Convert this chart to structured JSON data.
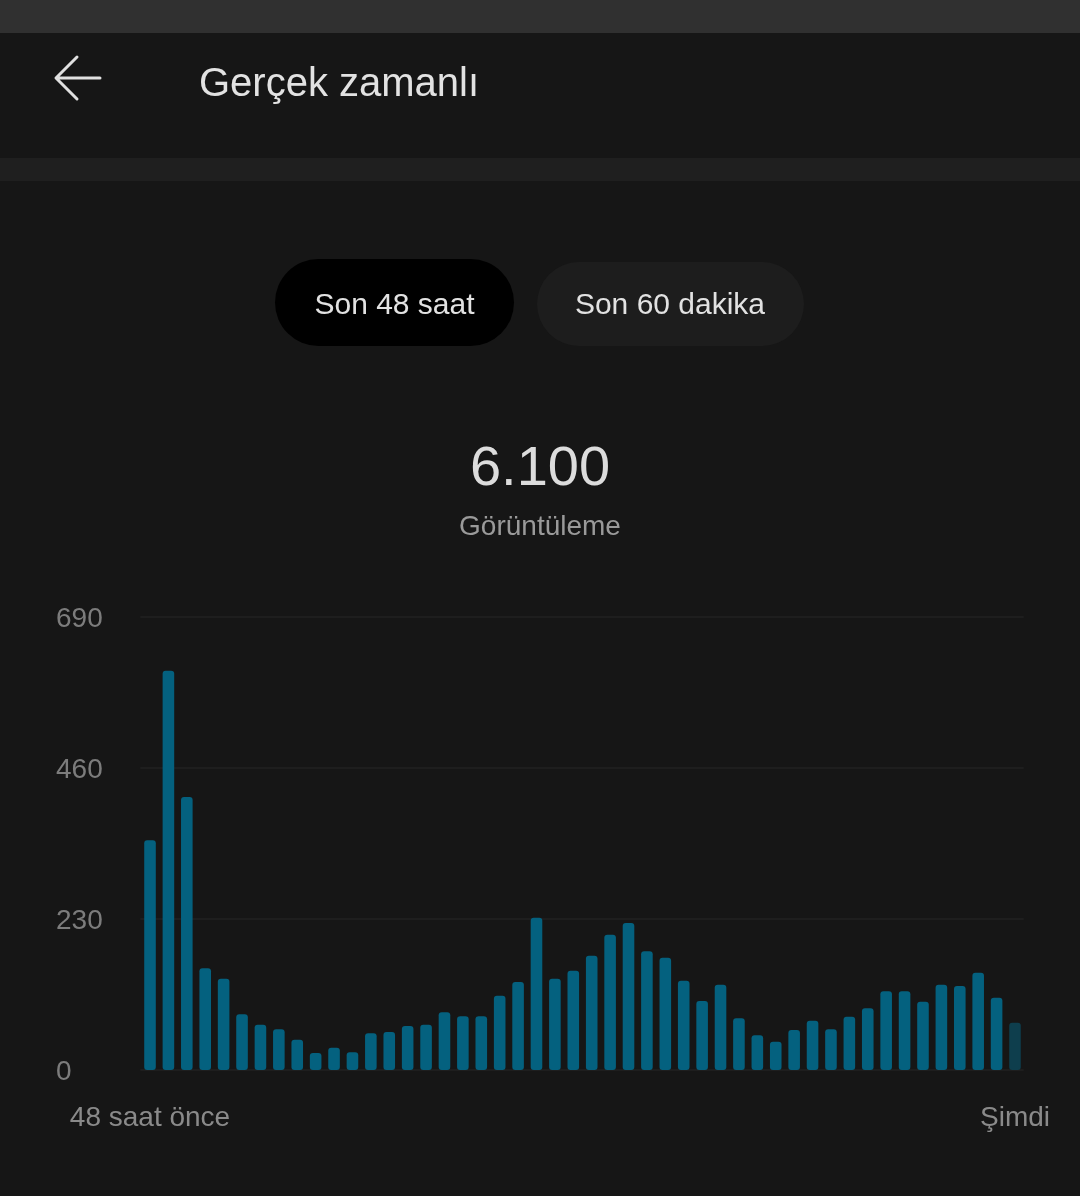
{
  "chart_data": {
    "type": "bar",
    "title": "Gerçek zamanlı",
    "annotations": [
      "Son 48 saat",
      "Son 60 dakika",
      "6.100",
      "Görüntüleme"
    ],
    "categories": [
      "48 saat önce",
      null,
      null,
      null,
      null,
      null,
      null,
      null,
      null,
      null,
      null,
      null,
      null,
      null,
      null,
      null,
      null,
      null,
      null,
      null,
      null,
      null,
      null,
      null,
      null,
      null,
      null,
      null,
      null,
      null,
      null,
      null,
      null,
      null,
      null,
      null,
      null,
      null,
      null,
      null,
      null,
      null,
      null,
      null,
      null,
      null,
      null,
      "Şimdi"
    ],
    "values": [
      350,
      608,
      416,
      155,
      139,
      85,
      69,
      62,
      46,
      26,
      34,
      27,
      56,
      58,
      67,
      69,
      88,
      82,
      82,
      113,
      134,
      232,
      139,
      151,
      174,
      206,
      224,
      181,
      171,
      136,
      105,
      130,
      79,
      53,
      43,
      61,
      75,
      62,
      81,
      94,
      120,
      120,
      104,
      130,
      128,
      148,
      110,
      72
    ],
    "colors": [
      "#04617f",
      "#04617f",
      "#04617f",
      "#04617f",
      "#04617f",
      "#04617f",
      "#04617f",
      "#04617f",
      "#04617f",
      "#04617f",
      "#04617f",
      "#04617f",
      "#04617f",
      "#04617f",
      "#04617f",
      "#04617f",
      "#04617f",
      "#04617f",
      "#04617f",
      "#04617f",
      "#04617f",
      "#04617f",
      "#04617f",
      "#04617f",
      "#04617f",
      "#04617f",
      "#04617f",
      "#04617f",
      "#04617f",
      "#04617f",
      "#04617f",
      "#04617f",
      "#04617f",
      "#04617f",
      "#04617f",
      "#04617f",
      "#04617f",
      "#04617f",
      "#04617f",
      "#04617f",
      "#04617f",
      "#04617f",
      "#04617f",
      "#04617f",
      "#04617f",
      "#04617f",
      "#04617f",
      "#0e3e4d"
    ],
    "ylim": [
      0,
      690
    ],
    "yticks": [
      0,
      230,
      460,
      690
    ],
    "grid": "y"
  }
}
